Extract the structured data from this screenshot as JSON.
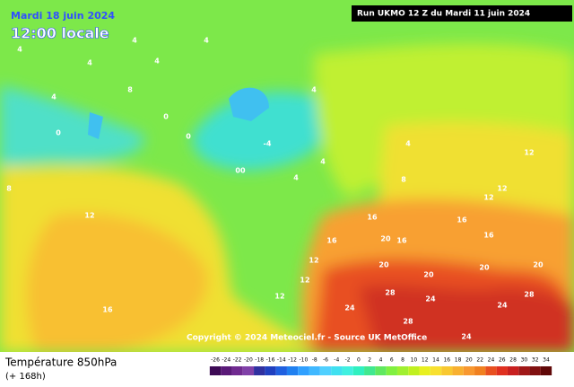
{
  "header": {
    "date": "Mardi 18 juin 2024",
    "time": "12:00 locale",
    "run": "Run UKMO 12 Z du Mardi 11 juin 2024"
  },
  "copyright": "Copyright © 2024 Meteociel.fr - Source UK MetOffice",
  "footer": {
    "title": "Température 850hPa",
    "lead": "(+ 168h)"
  },
  "map_labels": [
    "4",
    "4",
    "4",
    "4",
    "8",
    "4",
    "4",
    "0",
    "0",
    "-4",
    "4",
    "0",
    "00",
    "4",
    "4",
    "4",
    "8",
    "12",
    "12",
    "12",
    "12",
    "16",
    "16",
    "16",
    "20",
    "20",
    "16",
    "20",
    "24",
    "28",
    "28",
    "24",
    "20",
    "28",
    "24",
    "16",
    "12",
    "12",
    "12",
    "16",
    "24",
    "20",
    "8"
  ],
  "legend": {
    "labels": [
      -26,
      -24,
      -22,
      -20,
      -18,
      -16,
      -14,
      -12,
      -10,
      -8,
      -6,
      -4,
      -2,
      0,
      2,
      4,
      6,
      8,
      10,
      12,
      14,
      16,
      18,
      20,
      22,
      24,
      26,
      28,
      30,
      32,
      34
    ],
    "colors": [
      "#3d0a55",
      "#5a1a78",
      "#702a90",
      "#8040a8",
      "#3030a0",
      "#2040c0",
      "#2060e0",
      "#2080f0",
      "#30a0ff",
      "#40b8ff",
      "#50d0ff",
      "#40e0f0",
      "#40f0e0",
      "#30f0c0",
      "#40e890",
      "#60e860",
      "#80f040",
      "#a0f030",
      "#c0f020",
      "#e8f020",
      "#f8e030",
      "#f8c830",
      "#f8b030",
      "#f89830",
      "#f08020",
      "#e85020",
      "#e03020",
      "#c82020",
      "#a01818",
      "#801010",
      "#600808"
    ]
  }
}
